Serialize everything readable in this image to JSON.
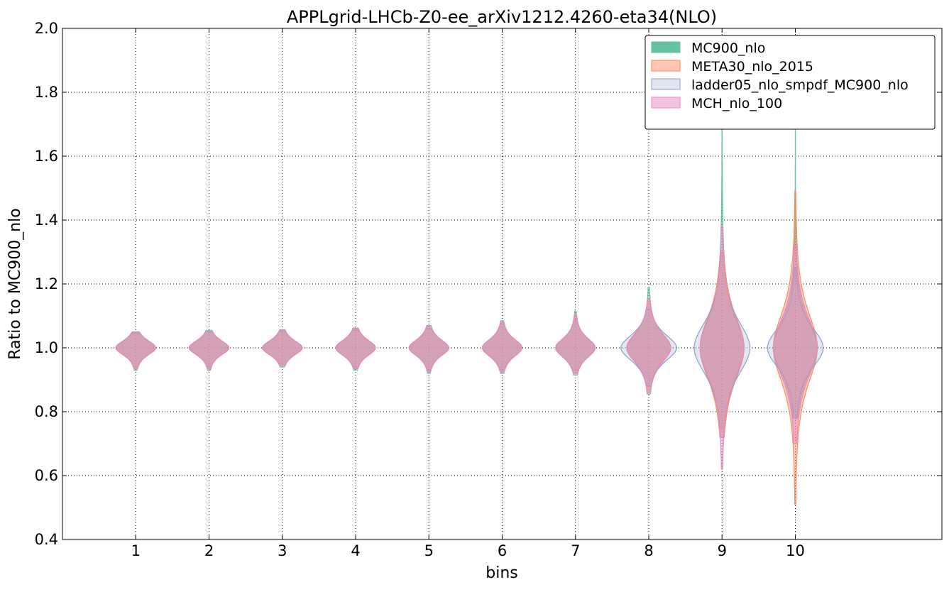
{
  "chart_data": {
    "type": "violin",
    "title": "APPLgrid-LHCb-Z0-ee_arXiv1212.4260-eta34(NLO)",
    "xlabel": "bins",
    "ylabel": "Ratio to MC900_nlo",
    "xlim": [
      0,
      12
    ],
    "ylim": [
      0.4,
      2.0
    ],
    "grid": true,
    "legend_position": "top-right",
    "xticks": [
      "1",
      "2",
      "3",
      "4",
      "5",
      "6",
      "7",
      "8",
      "9",
      "10"
    ],
    "yticks": [
      "0.4",
      "0.6",
      "0.8",
      "1.0",
      "1.2",
      "1.4",
      "1.6",
      "1.8",
      "2.0"
    ],
    "bins": [
      1,
      2,
      3,
      4,
      5,
      6,
      7,
      8,
      9,
      10
    ],
    "series": [
      {
        "name": "MC900_nlo",
        "color": "#66c2a5",
        "center": [
          1,
          1,
          1,
          1,
          1,
          1,
          1,
          1,
          1,
          1
        ],
        "min": [
          0.93,
          0.93,
          0.94,
          0.93,
          0.92,
          0.92,
          0.915,
          0.855,
          0.75,
          0.78
        ],
        "max": [
          1.05,
          1.055,
          1.057,
          1.062,
          1.07,
          1.085,
          1.115,
          1.19,
          1.75,
          1.94
        ],
        "spread": [
          0.025,
          0.025,
          0.025,
          0.027,
          0.028,
          0.03,
          0.033,
          0.05,
          0.11,
          0.09
        ]
      },
      {
        "name": "META30_nlo_2015",
        "color": "#fc8d62",
        "center": [
          1,
          1,
          1,
          1,
          1,
          1,
          1,
          1,
          1,
          1
        ],
        "min": [
          0.935,
          0.935,
          0.945,
          0.935,
          0.925,
          0.925,
          0.92,
          0.86,
          0.72,
          0.51
        ],
        "max": [
          1.048,
          1.052,
          1.055,
          1.06,
          1.068,
          1.08,
          1.105,
          1.15,
          1.3,
          1.49
        ],
        "spread": [
          0.025,
          0.025,
          0.025,
          0.027,
          0.028,
          0.03,
          0.033,
          0.05,
          0.11,
          0.12
        ]
      },
      {
        "name": "ladder05_nlo_smpdf_MC900_nlo",
        "color": "#8da0cb",
        "center": [
          1,
          1,
          1,
          1,
          1,
          1,
          1,
          1,
          1,
          1
        ],
        "min": [
          0.94,
          0.94,
          0.945,
          0.94,
          0.93,
          0.93,
          0.93,
          0.88,
          0.72,
          0.78
        ],
        "max": [
          1.045,
          1.05,
          1.052,
          1.055,
          1.06,
          1.075,
          1.09,
          1.12,
          1.3,
          1.25
        ],
        "spread": [
          0.025,
          0.025,
          0.025,
          0.027,
          0.028,
          0.03,
          0.033,
          0.045,
          0.09,
          0.07
        ]
      },
      {
        "name": "MCH_nlo_100",
        "color": "#e78ac3",
        "center": [
          1,
          1,
          1,
          1,
          1,
          1,
          1,
          1,
          1,
          1
        ],
        "min": [
          0.935,
          0.935,
          0.945,
          0.935,
          0.925,
          0.925,
          0.92,
          0.86,
          0.62,
          0.7
        ],
        "max": [
          1.048,
          1.052,
          1.055,
          1.06,
          1.068,
          1.08,
          1.1,
          1.15,
          1.38,
          1.32
        ],
        "spread": [
          0.025,
          0.025,
          0.025,
          0.027,
          0.028,
          0.03,
          0.033,
          0.05,
          0.1,
          0.1
        ]
      }
    ]
  }
}
